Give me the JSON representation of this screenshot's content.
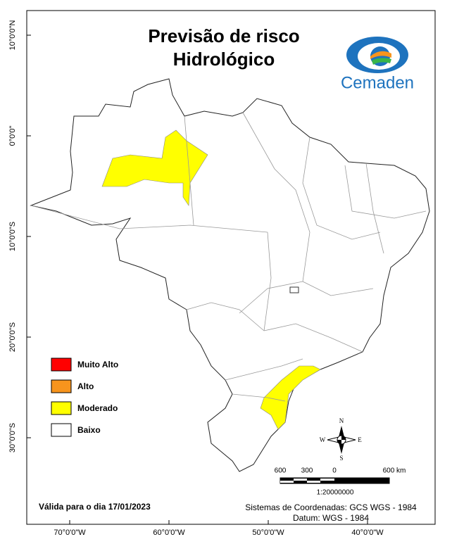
{
  "header": {
    "title": [
      "Previsão de risco",
      "Hidrológico"
    ],
    "logo": "Cemaden"
  },
  "legend": [
    {
      "label": "Muito Alto",
      "color": "#ff0000"
    },
    {
      "label": "Alto",
      "color": "#f7941d"
    },
    {
      "label": "Moderado",
      "color": "#ffff00"
    },
    {
      "label": "Baixo",
      "color": "#ffffff"
    }
  ],
  "graticule": {
    "latitude": [
      "10°0'0\"N",
      "0°0'0\"",
      "10°0'0\"S",
      "20°0'0\"S",
      "30°0'0\"S"
    ],
    "longitude": [
      "70°0'0\"W",
      "60°0'0\"W",
      "50°0'0\"W",
      "40°0'0\"W"
    ]
  },
  "compass": {
    "n": "N",
    "s": "S",
    "e": "E",
    "w": "W"
  },
  "scale": {
    "labels": [
      "600",
      "300",
      "0",
      "600 km"
    ],
    "ratio": "1:20000000"
  },
  "footer": {
    "validity": "Válida para o dia 17/01/2023",
    "coordinate_system": "Sistemas de Coordenadas: GCS WGS - 1984",
    "datum": "Datum: WGS - 1984"
  }
}
